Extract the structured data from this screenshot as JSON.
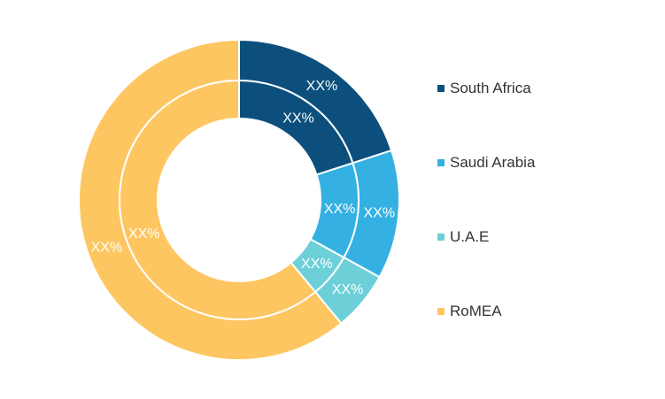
{
  "chart_data": {
    "type": "pie",
    "subtype": "double-ring donut",
    "categories": [
      "South Africa",
      "Saudi Arabia",
      "U.A.E",
      "RoMEA"
    ],
    "series": [
      {
        "values": [
          20,
          13,
          6,
          61
        ],
        "labels": [
          "XX%",
          "XX%",
          "XX%",
          "XX%"
        ]
      },
      {
        "values": [
          20,
          13,
          6,
          61
        ],
        "labels": [
          "XX%",
          "XX%",
          "XX%",
          "XX%"
        ]
      }
    ],
    "colors": [
      "#0c4f7c",
      "#35b0e2",
      "#6dd0d8",
      "#fdc661"
    ],
    "legend": {
      "placement": "right"
    },
    "title": ""
  }
}
